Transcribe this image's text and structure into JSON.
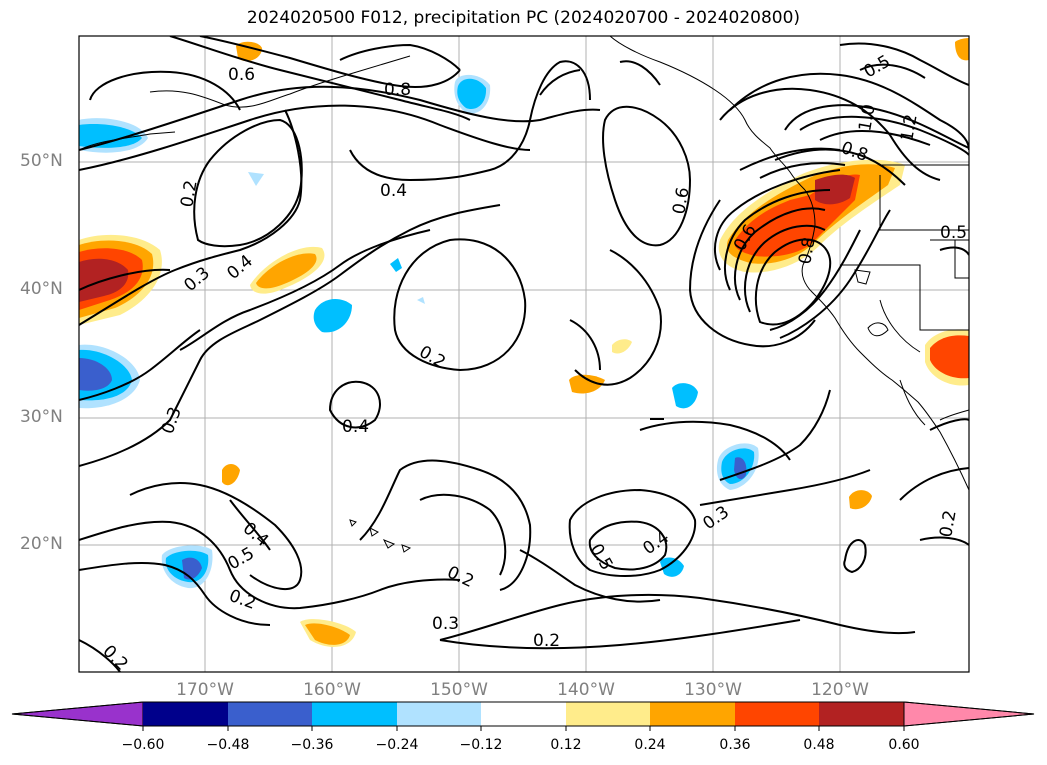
{
  "title": "2024020500 F012, precipitation PC (2024020700 - 2024020800)",
  "lat_labels": [
    "50°N",
    "40°N",
    "30°N",
    "20°N"
  ],
  "lon_labels": [
    "170°W",
    "160°W",
    "150°W",
    "140°W",
    "130°W",
    "120°W"
  ],
  "contour_labels": [
    "0.6",
    "0.8",
    "0.5",
    "1.0",
    "1.2",
    "0.2",
    "0.4",
    "0.8",
    "0.6",
    "0.6",
    "0.8",
    "0.5",
    "0.3",
    "0.4",
    "0.2",
    "0.3",
    "0.4",
    "0.4",
    "0.5",
    "0.2",
    "0.2",
    "0.3",
    "0.5",
    "0.4",
    "0.3",
    "0.2",
    "0.2",
    "0.2"
  ],
  "colorbar": {
    "ticks": [
      "−0.60",
      "−0.48",
      "−0.36",
      "−0.24",
      "−0.12",
      "0.12",
      "0.24",
      "0.36",
      "0.48",
      "0.60"
    ],
    "colors": [
      "#9932cc",
      "#00008b",
      "#3a5fcd",
      "#00bfff",
      "#b0e2ff",
      "#ffffff",
      "#ffec8b",
      "#ffa500",
      "#ff4500",
      "#b22222",
      "#ff88aa"
    ]
  }
}
